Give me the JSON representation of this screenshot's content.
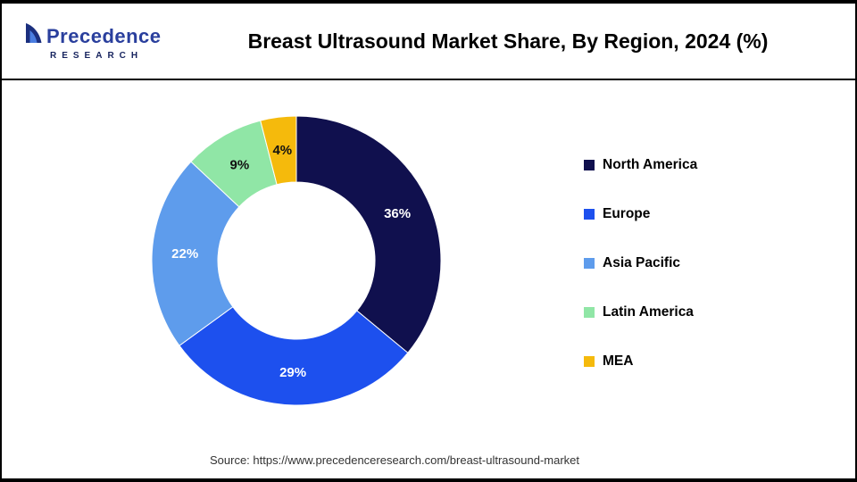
{
  "header": {
    "title": "Breast Ultrasound Market Share, By Region, 2024 (%)"
  },
  "brand": {
    "line1": "Precedence",
    "line2": "RESEARCH"
  },
  "footer": {
    "source_text": "Source: https://www.precedenceresearch.com/breast-ultrasound-market"
  },
  "chart_data": {
    "type": "pie",
    "subtype": "donut",
    "title": "Breast Ultrasound Market Share, By Region, 2024 (%)",
    "unit": "%",
    "direction": "clockwise",
    "start_angle_deg": 0,
    "legend_position": "right",
    "segments": [
      {
        "label": "North America",
        "value": 36,
        "color": "#10104e",
        "label_color": "#ffffff"
      },
      {
        "label": "Europe",
        "value": 29,
        "color": "#1d50ee",
        "label_color": "#ffffff"
      },
      {
        "label": "Asia Pacific",
        "value": 22,
        "color": "#5e9cec",
        "label_color": "#ffffff"
      },
      {
        "label": "Latin America",
        "value": 9,
        "color": "#90e6a6",
        "label_color": "#111111"
      },
      {
        "label": "MEA",
        "value": 4,
        "color": "#f5ba0c",
        "label_color": "#111111"
      }
    ]
  }
}
